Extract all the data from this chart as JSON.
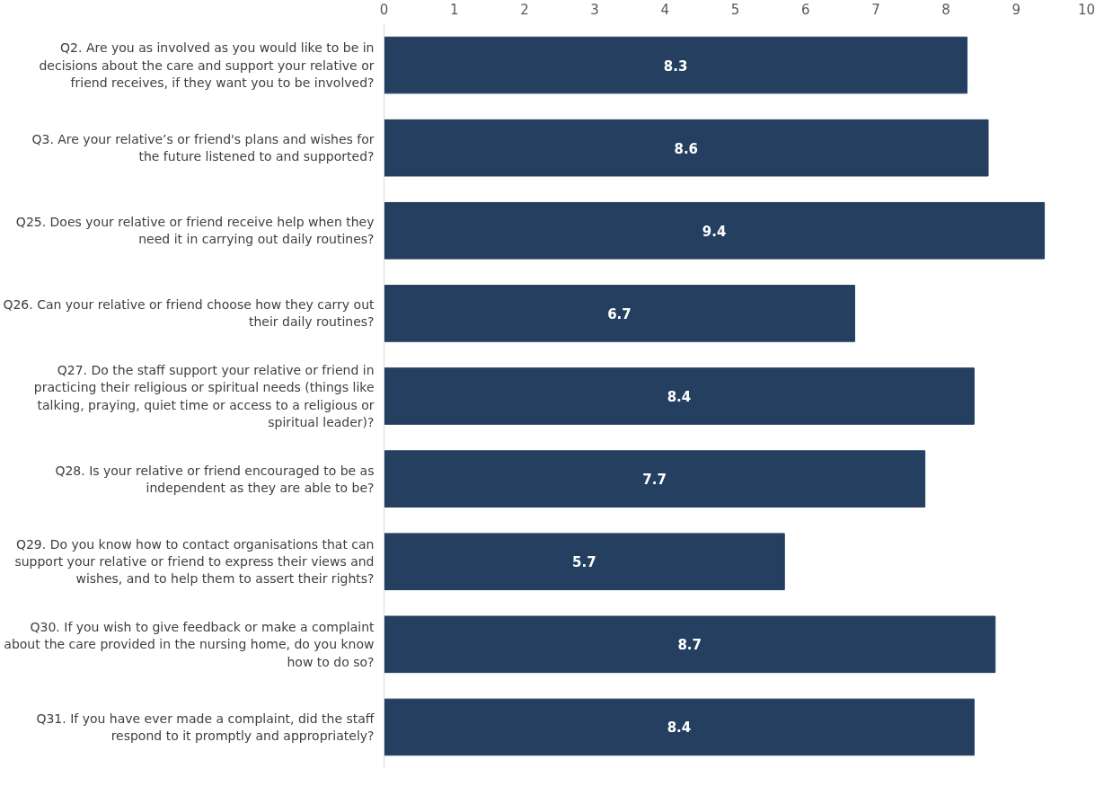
{
  "chart_data": {
    "type": "bar",
    "orientation": "horizontal",
    "categories": [
      "Q2. Are you as involved as you would like to be in decisions about the care and support your relative or friend receives, if they want you to be involved?",
      "Q3. Are your relative’s or friend's plans and wishes for the future listened to and supported?",
      "Q25. Does your relative or friend receive help when they need it in carrying out daily routines?",
      "Q26. Can your relative or friend choose how they carry out their daily routines?",
      "Q27. Do the staff support your relative or friend in practicing their religious or spiritual needs (things like talking, praying, quiet time or access to a religious or spiritual leader)?",
      "Q28. Is your relative or friend encouraged to be as independent as they are able to be?",
      "Q29. Do you know how to contact organisations that can support your relative or friend to express their views and wishes, and to help them to assert their rights?",
      "Q30. If you wish to give feedback or make a complaint about the care provided in the nursing home, do you know how to do so?",
      "Q31. If you have ever made a complaint, did the staff respond to it promptly and appropriately?"
    ],
    "values": [
      8.3,
      8.6,
      9.4,
      6.7,
      8.4,
      7.7,
      5.7,
      8.7,
      8.4
    ],
    "color": "#243f60",
    "xlim": [
      0,
      10
    ],
    "xticks": [
      0,
      1,
      2,
      3,
      4,
      5,
      6,
      7,
      8,
      9,
      10
    ],
    "grid": false,
    "data_labels": true
  }
}
